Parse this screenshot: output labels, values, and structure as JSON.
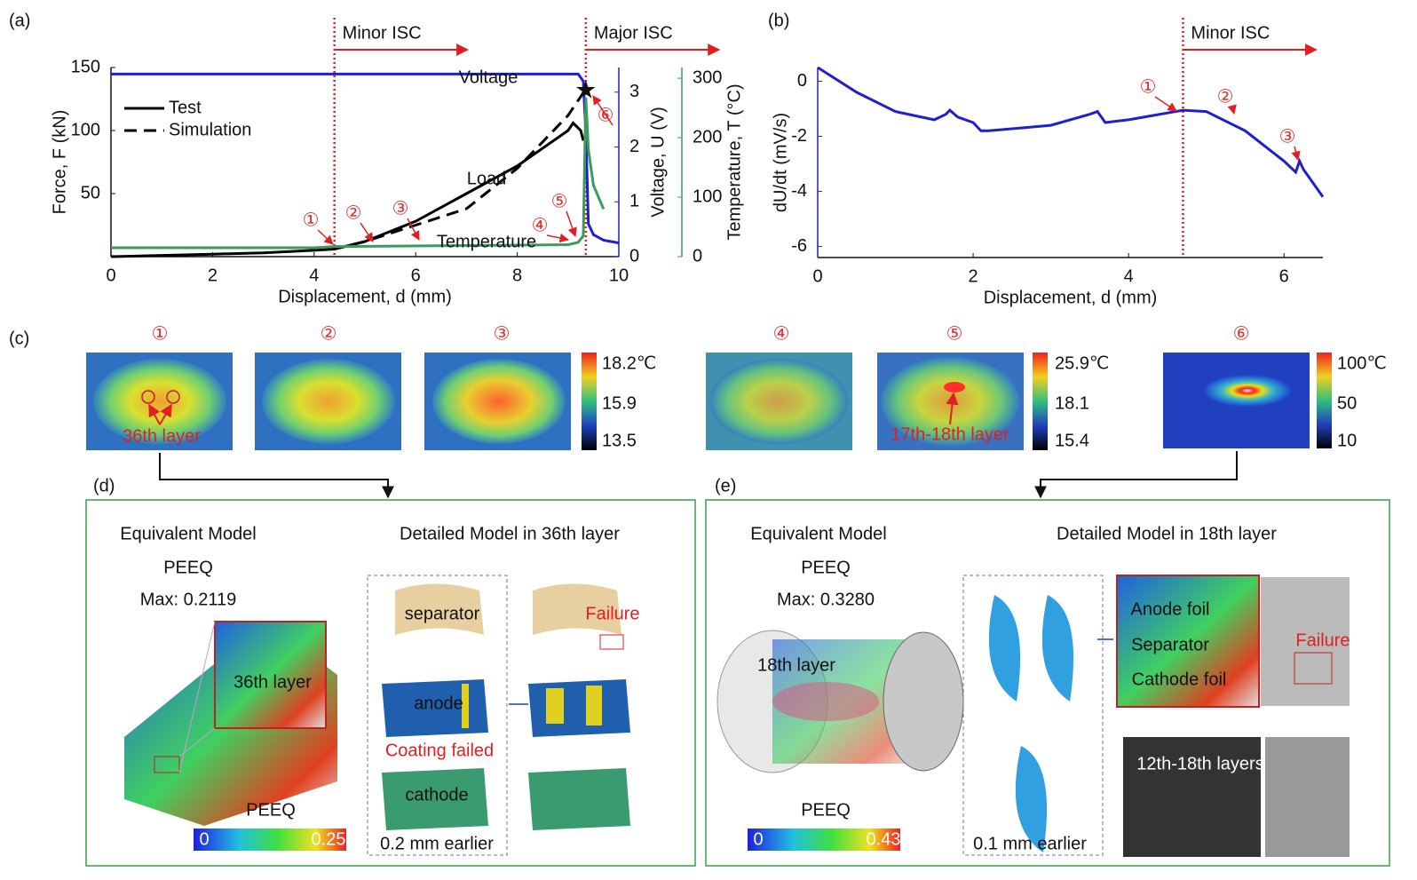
{
  "chart_data": [
    {
      "type": "line",
      "label": "(a)",
      "xlabel": "Displacement, d (mm)",
      "ylabel": "Force, F (kN)",
      "y2label": "Voltage, U (V)",
      "y3label": "Temperature, T (°C)",
      "xlim": [
        0,
        10
      ],
      "xticks": [
        0,
        2,
        4,
        6,
        8,
        10
      ],
      "ylim": [
        0,
        150
      ],
      "yticks": [
        50,
        100,
        150
      ],
      "y2lim": [
        0,
        3.45
      ],
      "y2ticks": [
        0,
        1,
        2,
        3
      ],
      "y3lim": [
        0,
        318
      ],
      "y3ticks": [
        0,
        100,
        200,
        300
      ],
      "legend": "upper left",
      "series": [
        {
          "name": "Test",
          "color": "#000000",
          "dash": false,
          "x": [
            0,
            1,
            2,
            3,
            4,
            4.4,
            5,
            6,
            7,
            8,
            9,
            9.1,
            9.25,
            9.3
          ],
          "values": [
            0,
            1,
            2,
            3,
            5,
            6,
            12,
            28,
            50,
            72,
            100,
            106,
            100,
            92
          ]
        },
        {
          "name": "Simulation",
          "color": "#000000",
          "dash": true,
          "x": [
            4.4,
            5,
            6,
            7,
            8,
            9,
            9.3
          ],
          "values": [
            6,
            12,
            25,
            38,
            70,
            112,
            130
          ]
        },
        {
          "name": "Voltage",
          "color": "#1f1fd0",
          "axis": "y2",
          "x": [
            0,
            9.2,
            9.3,
            9.35,
            9.4,
            9.5,
            9.7,
            10
          ],
          "values": [
            3.33,
            3.33,
            3.2,
            2.3,
            0.6,
            0.4,
            0.3,
            0.25
          ]
        },
        {
          "name": "Temperature",
          "color": "#3c9a5f",
          "axis": "y3",
          "x": [
            0,
            4,
            4.4,
            9,
            9.2,
            9.3,
            9.35,
            9.4,
            9.5,
            9.7
          ],
          "values": [
            15,
            15,
            17,
            20,
            24,
            35,
            267,
            180,
            120,
            80
          ]
        }
      ],
      "annotations": [
        {
          "text": "Minor  ISC",
          "x": 4.4
        },
        {
          "text": "Major ISC",
          "x": 9.35
        },
        {
          "text": "Load"
        }
      ],
      "markers": [
        "①",
        "②",
        "③",
        "④",
        "⑤",
        "⑥"
      ]
    },
    {
      "type": "line",
      "label": "(b)",
      "xlabel": "Displacement, d (mm)",
      "ylabel": "dU/dt (mV/s)",
      "xlim": [
        0,
        6.5
      ],
      "xticks": [
        0,
        2,
        4,
        6
      ],
      "ylim": [
        -6.4,
        0.5
      ],
      "yticks": [
        0,
        -2,
        -4,
        -6
      ],
      "series": [
        {
          "color": "#1f1fd0",
          "x": [
            0,
            0.5,
            1,
            1.5,
            1.65,
            1.7,
            1.8,
            2,
            2.1,
            2.2,
            3,
            3.5,
            3.6,
            3.7,
            4,
            4.7,
            5,
            5.5,
            6,
            6.15,
            6.2,
            6.25,
            6.5
          ],
          "values": [
            0.5,
            -0.4,
            -1.1,
            -1.4,
            -1.2,
            -1.05,
            -1.3,
            -1.5,
            -1.8,
            -1.8,
            -1.6,
            -1.2,
            -1.1,
            -1.5,
            -1.4,
            -1.05,
            -1.1,
            -1.8,
            -2.9,
            -3.3,
            -2.9,
            -3.2,
            -4.2
          ]
        }
      ],
      "annotations": [
        {
          "text": "Minor  ISC",
          "x": 4.7
        }
      ],
      "markers": [
        "①",
        "②",
        "③"
      ]
    }
  ],
  "panel_c": {
    "label": "(c)",
    "markers": [
      "①",
      "②",
      "③",
      "④",
      "⑤",
      "⑥"
    ],
    "colorbars": [
      [
        "18.2℃",
        "15.9",
        "13.5"
      ],
      [
        "25.9℃",
        "18.1",
        "15.4"
      ],
      [
        "100℃",
        "50",
        "10"
      ]
    ],
    "notes": [
      "36th layer",
      "17th-18th layer"
    ]
  },
  "panel_d": {
    "label": "(d)",
    "left_title": "Equivalent Model",
    "right_title": "Detailed Model in 36th layer",
    "peeq": "PEEQ",
    "max": "Max: 0.2119",
    "layer": "36th layer",
    "parts": [
      "separator",
      "anode",
      "cathode"
    ],
    "failure": "Failure",
    "coating": "Coating failed",
    "earlier": "0.2 mm earlier",
    "legend_title": "PEEQ",
    "scale": [
      "0",
      "0.25"
    ]
  },
  "panel_e": {
    "label": "(e)",
    "left_title": "Equivalent Model",
    "right_title": "Detailed Model in 18th layer",
    "peeq": "PEEQ",
    "max": "Max: 0.3280",
    "layer": "18th layer",
    "parts": [
      "Anode foil",
      "Separator",
      "Cathode foil"
    ],
    "failure": "Failure",
    "photo": "12th-18th layers",
    "earlier": "0.1 mm earlier",
    "legend_title": "PEEQ",
    "scale": [
      "0",
      "0.43"
    ]
  }
}
